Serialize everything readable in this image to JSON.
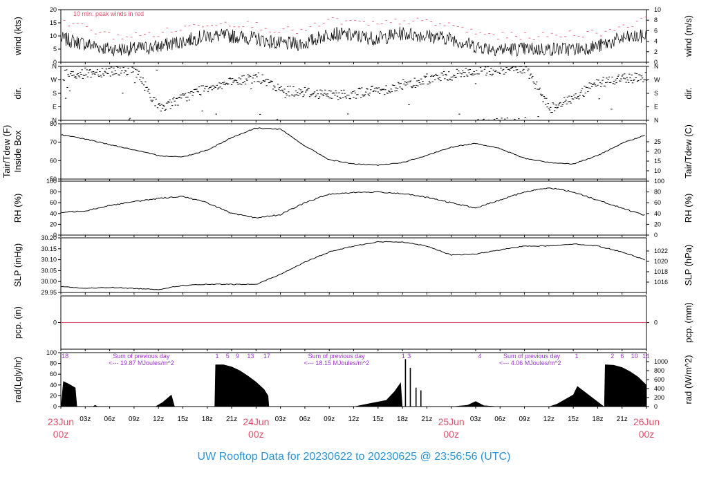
{
  "footer": "UW Rooftop Data for 20230622  to  20230625 @ 23:56:56  (UTC)",
  "x_days": [
    {
      "label": "23Jun",
      "sub": "00z",
      "hour": 0
    },
    {
      "label": "24Jun",
      "sub": "00z",
      "hour": 24
    },
    {
      "label": "25Jun",
      "sub": "00z",
      "hour": 48
    },
    {
      "label": "26Jun",
      "sub": "00z",
      "hour": 72
    }
  ],
  "x_hours": [
    {
      "h": 3,
      "t": "03z"
    },
    {
      "h": 6,
      "t": "06z"
    },
    {
      "h": 9,
      "t": "09z"
    },
    {
      "h": 12,
      "t": "12z"
    },
    {
      "h": 15,
      "t": "15z"
    },
    {
      "h": 18,
      "t": "18z"
    },
    {
      "h": 21,
      "t": "21z"
    },
    {
      "h": 27,
      "t": "03z"
    },
    {
      "h": 30,
      "t": "06z"
    },
    {
      "h": 33,
      "t": "09z"
    },
    {
      "h": 36,
      "t": "12z"
    },
    {
      "h": 39,
      "t": "15z"
    },
    {
      "h": 42,
      "t": "18z"
    },
    {
      "h": 45,
      "t": "21z"
    },
    {
      "h": 51,
      "t": "03z"
    },
    {
      "h": 54,
      "t": "06z"
    },
    {
      "h": 57,
      "t": "09z"
    },
    {
      "h": 60,
      "t": "12z"
    },
    {
      "h": 63,
      "t": "15z"
    },
    {
      "h": 66,
      "t": "18z"
    },
    {
      "h": 69,
      "t": "21z"
    }
  ],
  "colors": {
    "trace": "#000000",
    "peak": "#e0506a",
    "pcp": "#e0506a",
    "rad_text": "#9b30d0",
    "footer": "#2a93d5"
  },
  "chart_data": [
    {
      "type": "line",
      "id": "wind",
      "ylabel": "wind (kts)",
      "ylabel_right": "wind (m/s)",
      "ylim": [
        0,
        20
      ],
      "yticks": [
        "0",
        "5",
        "10",
        "15",
        "20"
      ],
      "right_ticks": [
        "0",
        "2",
        "4",
        "6",
        "8",
        "10"
      ],
      "annotation": "10 min. peak winds in red",
      "series": [
        {
          "role": "wind",
          "x": [
            0,
            3,
            6,
            9,
            12,
            15,
            18,
            21,
            24,
            27,
            30,
            33,
            36,
            39,
            42,
            45,
            48,
            51,
            54,
            57,
            60,
            63,
            66,
            69,
            72
          ],
          "y": [
            9,
            7,
            5,
            5,
            6,
            8,
            10,
            10,
            9,
            7,
            7,
            11,
            10,
            9,
            11,
            10,
            9,
            6,
            5,
            5,
            5,
            5,
            6,
            9,
            10
          ]
        },
        {
          "role": "peak",
          "x": [
            0,
            3,
            6,
            9,
            12,
            15,
            18,
            21,
            24,
            27,
            30,
            33,
            36,
            39,
            42,
            45,
            48,
            51,
            54,
            57,
            60,
            63,
            66,
            69,
            72
          ],
          "y": [
            16,
            13,
            10,
            10,
            11,
            13,
            15,
            15,
            14,
            12,
            12,
            16,
            15,
            14,
            16,
            15,
            14,
            11,
            10,
            10,
            10,
            11,
            11,
            14,
            16
          ]
        }
      ]
    },
    {
      "type": "scatter",
      "id": "dir",
      "ylabel": "dir.",
      "ylabel_right": "dir.",
      "ylim": [
        0,
        360
      ],
      "yticks": [
        "N",
        "E",
        "S",
        "W",
        "N"
      ],
      "right_ticks": [
        "N",
        "E",
        "S",
        "W",
        "N"
      ],
      "series": [
        {
          "x": [
            0,
            3,
            6,
            9,
            12,
            15,
            18,
            21,
            24,
            27,
            30,
            33,
            36,
            39,
            42,
            45,
            48,
            51,
            54,
            57,
            60,
            63,
            66,
            69,
            72
          ],
          "y": [
            300,
            315,
            330,
            340,
            80,
            150,
            225,
            250,
            290,
            200,
            190,
            170,
            180,
            200,
            230,
            275,
            300,
            330,
            340,
            345,
            80,
            150,
            250,
            280,
            290
          ]
        }
      ]
    },
    {
      "type": "line",
      "id": "temp",
      "ylabel": "Tair/Tdew (F)",
      "ylabel2": "Inside Box",
      "ylabel_right": "Tair/Tdew (C)",
      "ylim": [
        44,
        84
      ],
      "yticks": [
        "50",
        "60",
        "70",
        "80"
      ],
      "right_ticks": [
        "10",
        "15",
        "20",
        "25"
      ],
      "series": [
        {
          "x": [
            0,
            3,
            6,
            9,
            12,
            15,
            18,
            21,
            24,
            27,
            30,
            33,
            36,
            39,
            42,
            45,
            48,
            51,
            54,
            57,
            60,
            63,
            66,
            69,
            72
          ],
          "y": [
            76,
            73,
            69,
            65,
            61,
            60,
            65,
            74,
            81,
            80,
            68,
            58,
            55,
            54,
            56,
            61,
            67,
            70,
            66,
            59,
            56,
            55,
            61,
            70,
            76
          ]
        }
      ]
    },
    {
      "type": "line",
      "id": "rh",
      "ylabel": "RH (%)",
      "ylabel_right": "RH (%)",
      "ylim": [
        0,
        100
      ],
      "yticks": [
        "0",
        "20",
        "40",
        "60",
        "80",
        "100"
      ],
      "right_ticks": [
        "0",
        "20",
        "40",
        "60",
        "80",
        "100"
      ],
      "series": [
        {
          "x": [
            0,
            3,
            6,
            9,
            12,
            15,
            18,
            21,
            24,
            27,
            30,
            33,
            36,
            39,
            42,
            45,
            48,
            51,
            54,
            57,
            60,
            63,
            66,
            69,
            72
          ],
          "y": [
            42,
            45,
            55,
            62,
            68,
            72,
            60,
            40,
            32,
            38,
            60,
            76,
            79,
            80,
            77,
            70,
            60,
            50,
            65,
            80,
            88,
            80,
            65,
            50,
            36
          ]
        }
      ]
    },
    {
      "type": "line",
      "id": "slp",
      "ylabel": "SLP (inHg)",
      "ylabel_right": "SLP (hPa)",
      "ylim": [
        29.95,
        30.22
      ],
      "yticks": [
        "29.95",
        "30.00",
        "30.05",
        "30.10",
        "30.15",
        "30.20"
      ],
      "right_ticks": [
        "1016",
        "1018",
        "1020",
        "1022"
      ],
      "series": [
        {
          "x": [
            0,
            3,
            6,
            9,
            12,
            15,
            18,
            21,
            24,
            27,
            30,
            33,
            36,
            39,
            42,
            45,
            48,
            51,
            54,
            57,
            60,
            63,
            66,
            69,
            72
          ],
          "y": [
            29.98,
            29.97,
            29.975,
            29.97,
            29.965,
            29.985,
            29.99,
            29.99,
            29.99,
            30.04,
            30.1,
            30.15,
            30.18,
            30.2,
            30.2,
            30.18,
            30.135,
            30.14,
            30.16,
            30.18,
            30.18,
            30.19,
            30.18,
            30.15,
            30.11
          ]
        }
      ]
    },
    {
      "type": "line",
      "id": "pcp",
      "ylabel": "pcp. (in)",
      "ylabel_right": "pcp. (mm)",
      "ylim": [
        -0.01,
        0.01
      ],
      "yticks": [
        "0"
      ],
      "right_ticks": [
        "0"
      ],
      "series": [
        {
          "x": [
            0,
            72
          ],
          "y": [
            0,
            0
          ]
        }
      ]
    },
    {
      "type": "area",
      "id": "rad",
      "ylabel": "rad(Lgly/hr)",
      "ylabel_right": "rad (W/m^2)",
      "ylim": [
        0,
        100
      ],
      "yticks": [
        "0",
        "20",
        "40",
        "60",
        "80",
        "100"
      ],
      "right_ticks": [
        "0",
        "200",
        "400",
        "600",
        "800",
        "1000"
      ],
      "daily_sums": [
        {
          "line1": "Sum of previous day",
          "line2": "<--- 19.87 MJoules/m^2",
          "hour": 3
        },
        {
          "line1": "Sum of previous day",
          "line2": "<--- 18.15 MJoules/m^2",
          "hour": 27
        },
        {
          "line1": "Sum of previous day",
          "line2": "<--- 4.06 MJoules/m^2",
          "hour": 51
        }
      ],
      "hour_marks": [
        {
          "t": "18",
          "hour": 0.1
        },
        {
          "t": "1",
          "hour": 19
        },
        {
          "t": "5",
          "hour": 20.3
        },
        {
          "t": "9",
          "hour": 21.5
        },
        {
          "t": "13",
          "hour": 22.9
        },
        {
          "t": "17",
          "hour": 24.9
        },
        {
          "t": "1",
          "hour": 41.9
        },
        {
          "t": "3",
          "hour": 42.6
        },
        {
          "t": "4",
          "hour": 51.3
        },
        {
          "t": "1",
          "hour": 63.2
        },
        {
          "t": "2",
          "hour": 67.6
        },
        {
          "t": "6",
          "hour": 68.8
        },
        {
          "t": "10",
          "hour": 70.1
        },
        {
          "t": "14",
          "hour": 71.5
        }
      ],
      "series": [
        {
          "x": [
            0,
            0.3,
            1,
            1.8,
            2,
            3.9,
            4.2,
            4.6,
            11.6,
            12.5,
            13.6,
            14,
            18.9,
            19,
            20,
            21,
            22,
            23,
            24,
            25,
            25.5,
            25.6,
            26.6,
            36,
            38,
            40,
            41,
            41.8,
            42,
            42.5,
            48,
            50,
            51,
            52,
            54,
            60,
            61,
            63,
            63.5,
            66.8,
            66.9,
            67,
            68,
            69,
            70,
            71,
            72
          ],
          "y": [
            0,
            47,
            42,
            35,
            0,
            0,
            3,
            0,
            0,
            8,
            22,
            0,
            0,
            78,
            78,
            74,
            67,
            57,
            46,
            32,
            20,
            0,
            0,
            0,
            6,
            12,
            28,
            45,
            0,
            0,
            0,
            3,
            10,
            2,
            0,
            0,
            5,
            22,
            38,
            0,
            78,
            78,
            77,
            73,
            65,
            55,
            40
          ]
        }
      ]
    }
  ]
}
